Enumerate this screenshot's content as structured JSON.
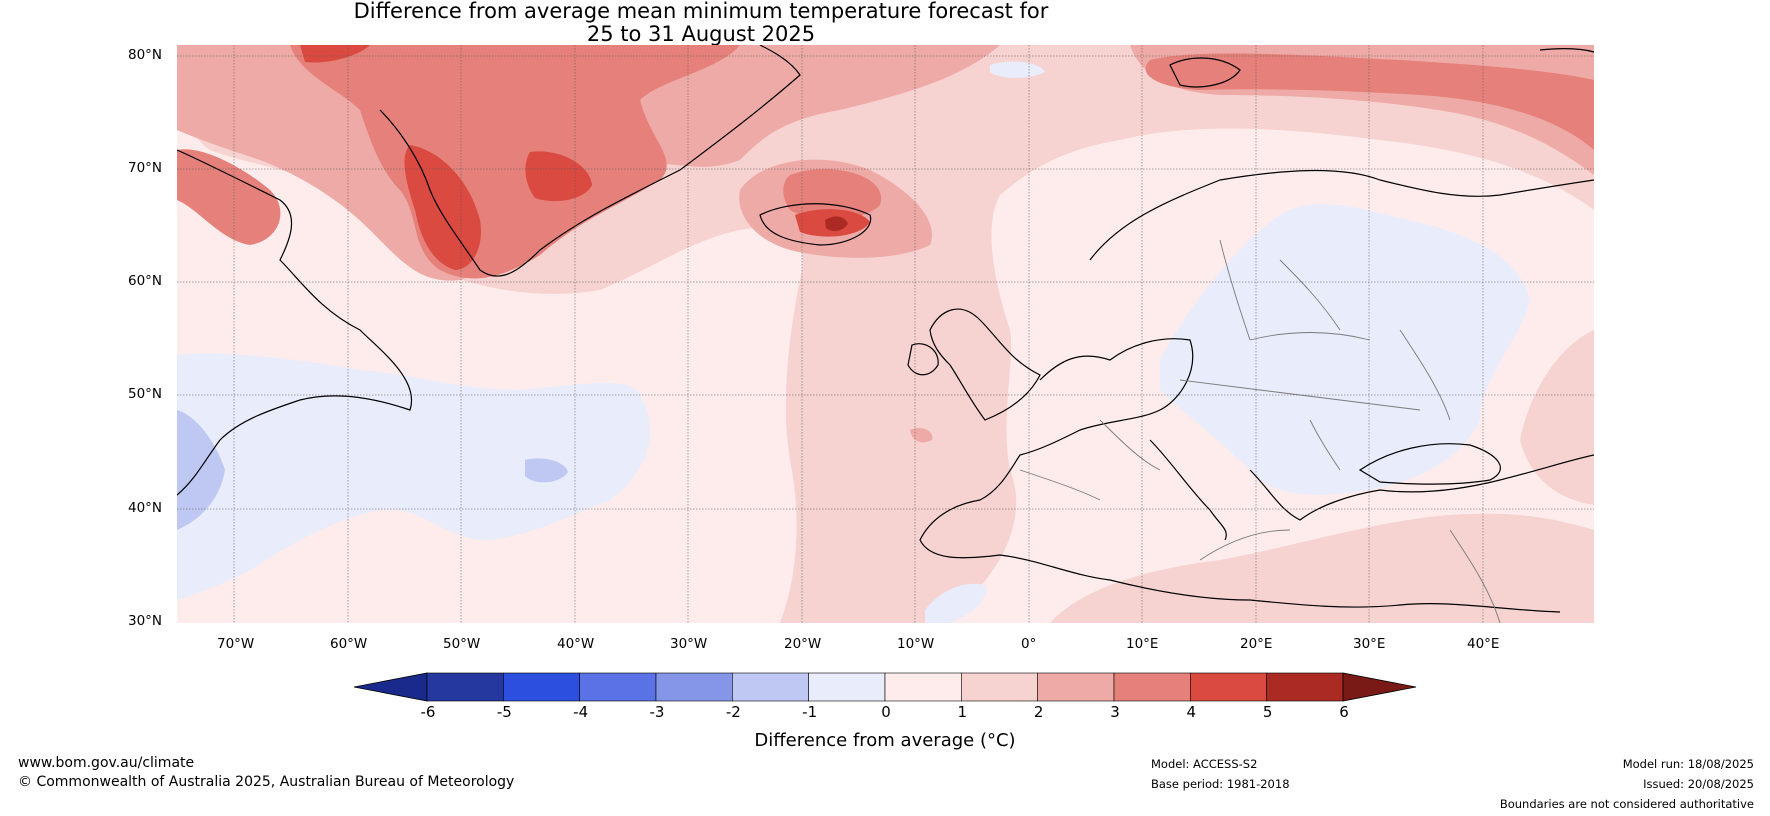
{
  "title": {
    "line1": "Difference from average mean minimum temperature forecast for",
    "line2": "25 to 31 August 2025"
  },
  "map": {
    "lat_labels": [
      "80°N",
      "70°N",
      "60°N",
      "50°N",
      "40°N",
      "30°N"
    ],
    "lon_labels": [
      "70°W",
      "60°W",
      "50°W",
      "40°W",
      "30°W",
      "20°W",
      "10°W",
      "0°",
      "10°E",
      "20°E",
      "30°E",
      "40°E"
    ]
  },
  "colorbar": {
    "ticks": [
      "-6",
      "-5",
      "-4",
      "-3",
      "-2",
      "-1",
      "0",
      "1",
      "2",
      "3",
      "4",
      "5",
      "6"
    ],
    "colors": [
      "#24389f",
      "#2d4fe0",
      "#5a72e6",
      "#8596e8",
      "#bfc8f2",
      "#e8ecfb",
      "#fdeceb",
      "#f6d2d0",
      "#eeaaa6",
      "#e5817a",
      "#da4a40",
      "#ab2a24"
    ],
    "under_color": "#192a8c",
    "over_color": "#7a1a16",
    "label": "Difference from average (°C)"
  },
  "footer": {
    "website": "www.bom.gov.au/climate",
    "copyright": "© Commonwealth of Australia 2025, Australian Bureau of Meteorology",
    "model": "Model: ACCESS-S2",
    "base_period": "Base period: 1981-2018",
    "model_run": "Model run: 18/08/2025",
    "issued": "Issued: 20/08/2025",
    "disclaimer": "Boundaries are not considered authoritative"
  }
}
